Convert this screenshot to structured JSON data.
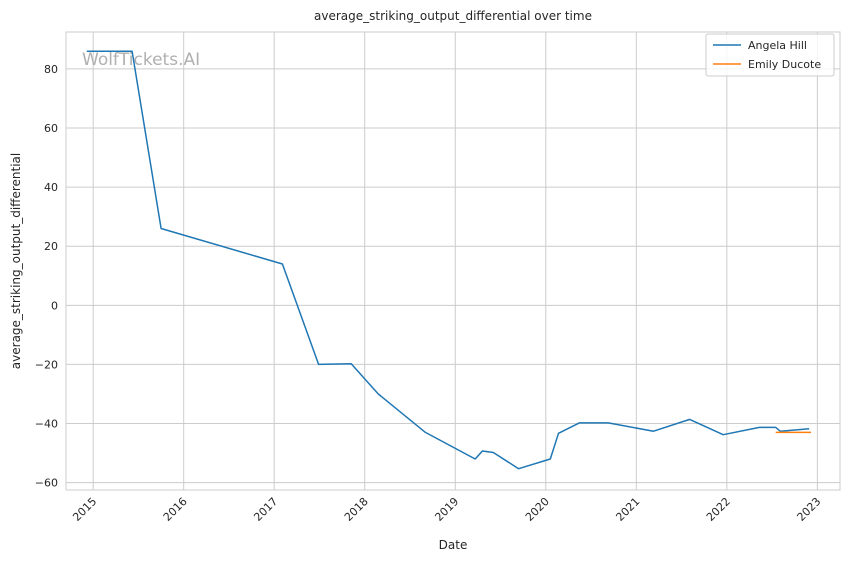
{
  "watermark": "WolfTickets.AI",
  "chart_data": {
    "type": "line",
    "title": "average_striking_output_differential over time",
    "xlabel": "Date",
    "ylabel": "average_striking_output_differential",
    "xlim": [
      2014.7,
      2023.25
    ],
    "ylim": [
      -62.5,
      92.5
    ],
    "x_ticks": [
      2015,
      2016,
      2017,
      2018,
      2019,
      2020,
      2021,
      2022,
      2023
    ],
    "x_tick_labels": [
      "2015",
      "2016",
      "2017",
      "2018",
      "2019",
      "2020",
      "2021",
      "2022",
      "2023"
    ],
    "y_ticks": [
      -60,
      -40,
      -20,
      0,
      20,
      40,
      60,
      80
    ],
    "y_tick_labels": [
      "−60",
      "−40",
      "−20",
      "0",
      "20",
      "40",
      "60",
      "80"
    ],
    "grid": true,
    "legend_position": "top-right",
    "series": [
      {
        "name": "Angela Hill",
        "color": "#1f77b4",
        "x": [
          2014.93,
          2015.43,
          2015.75,
          2017.09,
          2017.49,
          2017.85,
          2018.15,
          2018.67,
          2019.22,
          2019.3,
          2019.42,
          2019.7,
          2020.05,
          2020.14,
          2020.37,
          2020.69,
          2021.19,
          2021.59,
          2021.96,
          2022.36,
          2022.54,
          2022.59,
          2022.91
        ],
        "y": [
          86,
          86,
          26,
          14,
          -20,
          -19.8,
          -30,
          -43,
          -52,
          -49.3,
          -49.8,
          -55.3,
          -52,
          -43.3,
          -39.8,
          -39.8,
          -42.6,
          -38.6,
          -43.8,
          -41.3,
          -41.3,
          -42.6,
          -41.8
        ]
      },
      {
        "name": "Emily Ducote",
        "color": "#ff7f0e",
        "x": [
          2022.54,
          2022.93
        ],
        "y": [
          -43,
          -43
        ]
      }
    ]
  }
}
